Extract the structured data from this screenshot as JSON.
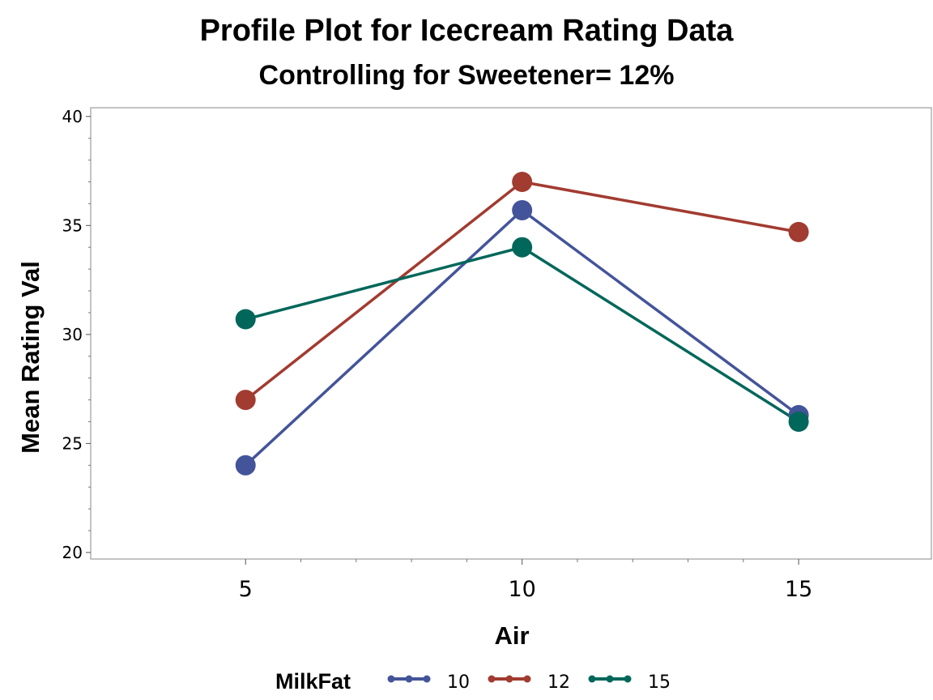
{
  "chart_data": {
    "type": "line",
    "title": "Profile Plot for Icecream Rating Data",
    "subtitle": "Controlling for Sweetener= 12%",
    "xlabel": "Air",
    "ylabel": "Mean Rating Val",
    "x": [
      5,
      10,
      15
    ],
    "x_ticks": [
      "5",
      "10",
      "15"
    ],
    "xlim": [
      2.2,
      17.4
    ],
    "ylim": [
      19.7,
      40.4
    ],
    "y_ticks": [
      "20",
      "25",
      "30",
      "35",
      "40"
    ],
    "grid": false,
    "legend": {
      "title": "MilkFat",
      "placement": "bottom"
    },
    "series": [
      {
        "name": "10",
        "color": "#44549a",
        "values": [
          24.0,
          35.7,
          26.3
        ]
      },
      {
        "name": "12",
        "color": "#a23b30",
        "values": [
          27.0,
          37.0,
          34.7
        ]
      },
      {
        "name": "15",
        "color": "#00675a",
        "values": [
          30.7,
          34.0,
          26.0
        ]
      }
    ]
  }
}
